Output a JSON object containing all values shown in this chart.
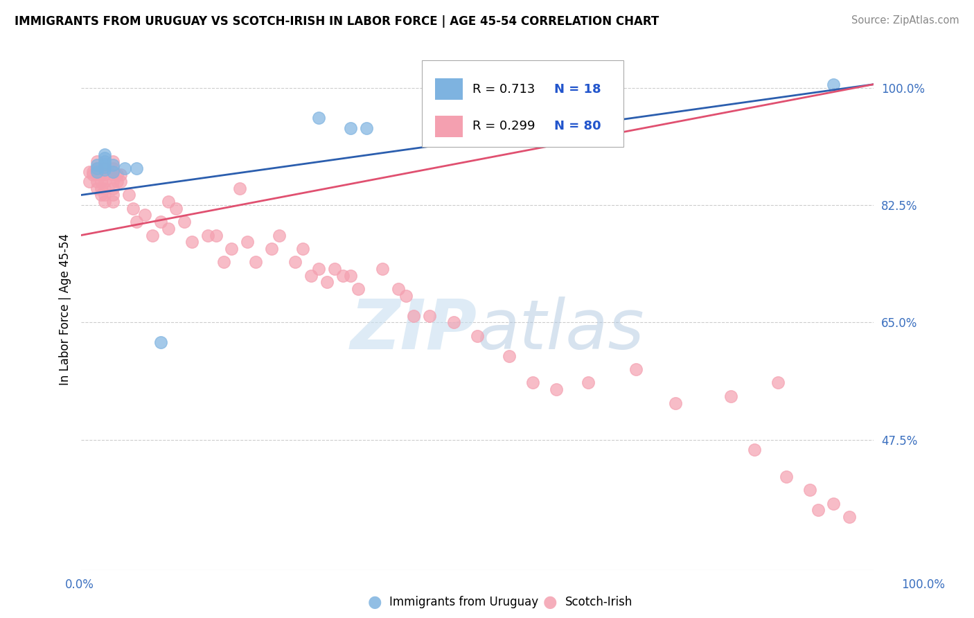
{
  "title": "IMMIGRANTS FROM URUGUAY VS SCOTCH-IRISH IN LABOR FORCE | AGE 45-54 CORRELATION CHART",
  "source": "Source: ZipAtlas.com",
  "ylabel": "In Labor Force | Age 45-54",
  "y_ticks": [
    0.475,
    0.65,
    0.825,
    1.0
  ],
  "y_tick_labels": [
    "47.5%",
    "65.0%",
    "82.5%",
    "100.0%"
  ],
  "x_range": [
    0.0,
    1.0
  ],
  "y_range": [
    0.28,
    1.06
  ],
  "uruguay_color": "#7EB3E0",
  "scotch_color": "#F4A0B0",
  "uruguay_line_color": "#2B5EAE",
  "scotch_line_color": "#E05070",
  "R_uruguay": 0.713,
  "N_uruguay": 18,
  "R_scotch": 0.299,
  "N_scotch": 80,
  "legend_color": "#2255CC",
  "uruguay_x": [
    0.02,
    0.02,
    0.02,
    0.03,
    0.03,
    0.03,
    0.03,
    0.03,
    0.03,
    0.04,
    0.04,
    0.055,
    0.07,
    0.1,
    0.3,
    0.34,
    0.36,
    0.95
  ],
  "uruguay_y": [
    0.875,
    0.88,
    0.885,
    0.878,
    0.882,
    0.886,
    0.89,
    0.895,
    0.9,
    0.885,
    0.875,
    0.88,
    0.88,
    0.62,
    0.955,
    0.94,
    0.94,
    1.005
  ],
  "scotch_x": [
    0.01,
    0.01,
    0.015,
    0.015,
    0.02,
    0.02,
    0.02,
    0.02,
    0.02,
    0.025,
    0.025,
    0.025,
    0.025,
    0.03,
    0.03,
    0.03,
    0.03,
    0.03,
    0.03,
    0.04,
    0.04,
    0.04,
    0.04,
    0.04,
    0.04,
    0.04,
    0.045,
    0.045,
    0.05,
    0.05,
    0.06,
    0.065,
    0.07,
    0.08,
    0.09,
    0.1,
    0.11,
    0.11,
    0.12,
    0.13,
    0.14,
    0.16,
    0.17,
    0.18,
    0.19,
    0.2,
    0.21,
    0.22,
    0.24,
    0.25,
    0.27,
    0.28,
    0.29,
    0.3,
    0.31,
    0.32,
    0.33,
    0.34,
    0.35,
    0.38,
    0.4,
    0.41,
    0.42,
    0.44,
    0.47,
    0.5,
    0.54,
    0.57,
    0.6,
    0.64,
    0.7,
    0.75,
    0.82,
    0.85,
    0.88,
    0.89,
    0.92,
    0.93,
    0.95,
    0.97
  ],
  "scotch_y": [
    0.875,
    0.86,
    0.875,
    0.87,
    0.89,
    0.88,
    0.87,
    0.86,
    0.85,
    0.87,
    0.86,
    0.85,
    0.84,
    0.88,
    0.87,
    0.86,
    0.85,
    0.84,
    0.83,
    0.89,
    0.88,
    0.87,
    0.86,
    0.85,
    0.84,
    0.83,
    0.87,
    0.86,
    0.87,
    0.86,
    0.84,
    0.82,
    0.8,
    0.81,
    0.78,
    0.8,
    0.83,
    0.79,
    0.82,
    0.8,
    0.77,
    0.78,
    0.78,
    0.74,
    0.76,
    0.85,
    0.77,
    0.74,
    0.76,
    0.78,
    0.74,
    0.76,
    0.72,
    0.73,
    0.71,
    0.73,
    0.72,
    0.72,
    0.7,
    0.73,
    0.7,
    0.69,
    0.66,
    0.66,
    0.65,
    0.63,
    0.6,
    0.56,
    0.55,
    0.56,
    0.58,
    0.53,
    0.54,
    0.46,
    0.56,
    0.42,
    0.4,
    0.37,
    0.38,
    0.36
  ],
  "blue_line_x0": 0.0,
  "blue_line_y0": 0.84,
  "blue_line_x1": 1.0,
  "blue_line_y1": 1.005,
  "pink_line_x0": 0.0,
  "pink_line_y0": 0.78,
  "pink_line_x1": 1.0,
  "pink_line_y1": 1.005
}
